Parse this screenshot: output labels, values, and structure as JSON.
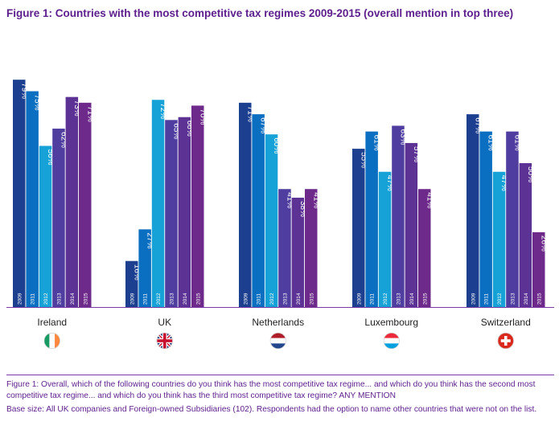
{
  "title": "Figure 1: Countries with the most competitive tax regimes 2009-2015 (overall mention in top three)",
  "footnotes": {
    "question": "Figure 1: Overall, which of the following countries do you think has the most competitive tax regime... and which do you think has the second most competitive tax regime... and which do you think has the third most competitive tax regime?  ANY MENTION",
    "base": "Base size: All UK companies and Foreign-owned Subsidiaries (102). Respondents had the option to name other countries that were not on the list."
  },
  "colors": {
    "series": [
      "#1c3f8f",
      "#0b6fc1",
      "#16a2d6",
      "#4f3ea0",
      "#5c3395",
      "#6d2a8a"
    ],
    "title": "#5b1f8c",
    "divider": "#7a3aa6"
  },
  "chart_data": {
    "type": "bar",
    "title": "Figure 1: Countries with the most competitive tax regimes 2009-2015 (overall mention in top three)",
    "categories": [
      "Ireland",
      "UK",
      "Netherlands",
      "Luxembourg",
      "Switzerland"
    ],
    "flags": [
      "ireland-flag-icon",
      "uk-flag-icon",
      "netherlands-flag-icon",
      "luxembourg-flag-icon",
      "switzerland-flag-icon"
    ],
    "value_suffix": "%",
    "ylim": [
      0,
      85
    ],
    "series": [
      {
        "name": "2009",
        "values": [
          79,
          16,
          71,
          55,
          67
        ]
      },
      {
        "name": "2011",
        "values": [
          75,
          27,
          67,
          61,
          61
        ]
      },
      {
        "name": "2012",
        "values": [
          56,
          72,
          60,
          47,
          47
        ]
      },
      {
        "name": "2013",
        "values": [
          62,
          65,
          41,
          63,
          61
        ]
      },
      {
        "name": "2014",
        "values": [
          73,
          66,
          38,
          57,
          50
        ]
      },
      {
        "name": "2015",
        "values": [
          71,
          70,
          41,
          41,
          26
        ]
      }
    ]
  }
}
